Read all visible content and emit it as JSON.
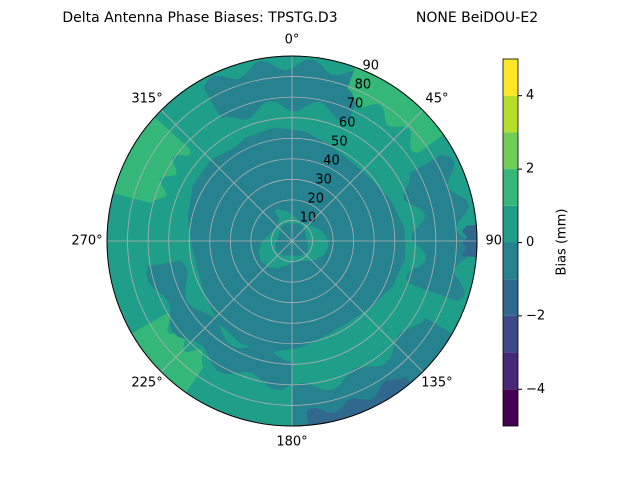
{
  "chart_data": {
    "type": "polar-contour",
    "title": "Delta Antenna Phase Biases: TPSTG.D3",
    "subtitle": "NONE BeiDOU-E2",
    "thetaticks": [
      {
        "value": 0,
        "label": "0°"
      },
      {
        "value": 45,
        "label": "45°"
      },
      {
        "value": 90,
        "label": "90°"
      },
      {
        "value": 135,
        "label": "135°"
      },
      {
        "value": 180,
        "label": "180°"
      },
      {
        "value": 225,
        "label": "225°"
      },
      {
        "value": 270,
        "label": "270°"
      },
      {
        "value": 315,
        "label": "315°"
      }
    ],
    "theta_direction": "clockwise",
    "theta_zero": "N",
    "rlim": [
      0,
      90
    ],
    "rticks": [
      10,
      20,
      30,
      40,
      50,
      60,
      70,
      80,
      90
    ],
    "grid": true,
    "colorbar": {
      "label": "Bias (mm)",
      "lim": [
        -5,
        5
      ],
      "levels": [
        -5,
        -4,
        -3,
        -2,
        -1,
        0,
        1,
        2,
        3,
        4,
        5
      ],
      "colors": [
        "#440154",
        "#482878",
        "#3e4989",
        "#31688e",
        "#26828e",
        "#1f9e89",
        "#35b779",
        "#6ece58",
        "#b5de2b",
        "#fde725"
      ],
      "ticks": [
        {
          "value": -4,
          "label": "−4"
        },
        {
          "value": -2,
          "label": "−2"
        },
        0,
        2,
        4
      ]
    }
  }
}
